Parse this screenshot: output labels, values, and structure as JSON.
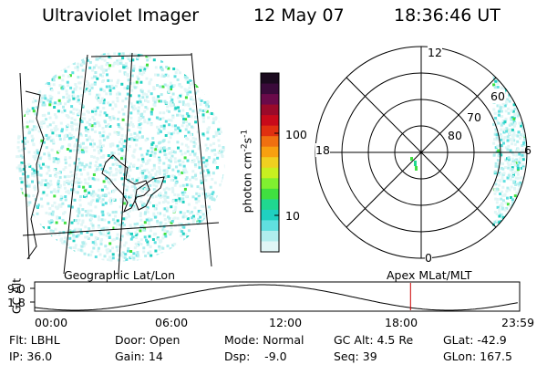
{
  "header": {
    "instrument": "Ultraviolet Imager",
    "date": "12 May 07",
    "time": "18:36:46 UT"
  },
  "geo_panel": {
    "label": "Geographic Lat/Lon"
  },
  "polar_panel": {
    "label": "Apex MLat/MLT",
    "mlt_labels": [
      "12",
      "18",
      "6",
      "0"
    ],
    "lat_labels": [
      "60",
      "70",
      "80"
    ]
  },
  "colorbar": {
    "unit_label": "photon cm",
    "unit_sup1": "-2",
    "unit_mid": "s",
    "unit_sup2": "-1",
    "tick_labels": [
      "100",
      "10"
    ],
    "colors": [
      "#1a0a1e",
      "#3a0a3a",
      "#6a0a4a",
      "#9a0a2a",
      "#c80a1a",
      "#e03010",
      "#f07010",
      "#f8a010",
      "#f0d020",
      "#c8f020",
      "#80f030",
      "#40e040",
      "#20d890",
      "#20d0c0",
      "#60e0e0",
      "#b0eeee",
      "#e0f6f6"
    ]
  },
  "orbit_plot": {
    "ylabel": "GC Alt",
    "yticks": [
      "9.0",
      "1.8"
    ],
    "xticks": [
      "00:00",
      "06:00",
      "12:00",
      "18:00",
      "23:59"
    ],
    "marker_time": "18:36",
    "marker_color": "#cc0000"
  },
  "info": {
    "filter": "Flt: LBHL",
    "ip": "IP: 36.0",
    "door": "Door: Open",
    "gain": "Gain: 14",
    "mode": "Mode: Normal",
    "dsp": "Dsp:    -9.0",
    "gc_alt": "GC Alt: 4.5 Re",
    "seq": "Seq: 39",
    "glat": "GLat: -42.9",
    "glon": "GLon: 167.5"
  }
}
